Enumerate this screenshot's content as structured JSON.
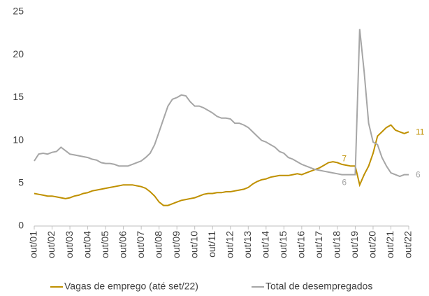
{
  "chart_data": {
    "type": "line",
    "categories": [
      "out/01",
      null,
      null,
      null,
      "out/02",
      null,
      null,
      null,
      "out/03",
      null,
      null,
      null,
      "out/04",
      null,
      null,
      null,
      "out/05",
      null,
      null,
      null,
      "out/06",
      null,
      null,
      null,
      "out/07",
      null,
      null,
      null,
      "out/08",
      null,
      null,
      null,
      "out/09",
      null,
      null,
      null,
      "out/10",
      null,
      null,
      null,
      "out/11",
      null,
      null,
      null,
      "out/12",
      null,
      null,
      null,
      "out/13",
      null,
      null,
      null,
      "out/14",
      null,
      null,
      null,
      "out/15",
      null,
      null,
      null,
      "out/16",
      null,
      null,
      null,
      "out/17",
      null,
      null,
      null,
      "out/18",
      null,
      null,
      null,
      "out/19",
      null,
      null,
      null,
      "out/20",
      null,
      null,
      null,
      "out/21",
      null,
      null,
      null,
      "out/22"
    ],
    "series": [
      {
        "name": "Vagas de emprego (até set/22)",
        "color": "#bf9000",
        "values": [
          3.8,
          3.7,
          3.6,
          3.5,
          3.5,
          3.4,
          3.3,
          3.2,
          3.3,
          3.5,
          3.6,
          3.8,
          3.9,
          4.1,
          4.2,
          4.3,
          4.4,
          4.5,
          4.6,
          4.7,
          4.8,
          4.8,
          4.8,
          4.7,
          4.6,
          4.4,
          4.0,
          3.5,
          2.8,
          2.4,
          2.4,
          2.6,
          2.8,
          3.0,
          3.1,
          3.2,
          3.3,
          3.5,
          3.7,
          3.8,
          3.8,
          3.9,
          3.9,
          4.0,
          4.0,
          4.1,
          4.2,
          4.3,
          4.5,
          4.9,
          5.2,
          5.4,
          5.5,
          5.7,
          5.8,
          5.9,
          5.9,
          5.9,
          6.0,
          6.1,
          6.0,
          6.2,
          6.4,
          6.6,
          6.8,
          7.1,
          7.4,
          7.5,
          7.4,
          7.2,
          7.1,
          7,
          7.0,
          4.8,
          6.0,
          7.0,
          8.5,
          10.5,
          11.0,
          11.5,
          11.8,
          11.2,
          11.0,
          10.8,
          11
        ],
        "value_labels": [
          null,
          null,
          null,
          null,
          null,
          null,
          null,
          null,
          null,
          null,
          null,
          null,
          null,
          null,
          null,
          null,
          null,
          null,
          null,
          null,
          null,
          null,
          null,
          null,
          null,
          null,
          null,
          null,
          null,
          null,
          null,
          null,
          null,
          null,
          null,
          null,
          null,
          null,
          null,
          null,
          null,
          null,
          null,
          null,
          null,
          null,
          null,
          null,
          null,
          null,
          null,
          null,
          null,
          null,
          null,
          null,
          null,
          null,
          null,
          null,
          null,
          null,
          null,
          null,
          null,
          null,
          null,
          null,
          null,
          null,
          null,
          "7",
          null,
          null,
          null,
          null,
          null,
          null,
          null,
          null,
          null,
          null,
          null,
          null,
          "11"
        ]
      },
      {
        "name": "Total de desempregados",
        "color": "#a6a6a6",
        "values": [
          7.6,
          8.4,
          8.5,
          8.4,
          8.6,
          8.7,
          9.2,
          8.8,
          8.4,
          8.3,
          8.2,
          8.1,
          8.0,
          7.8,
          7.7,
          7.4,
          7.3,
          7.3,
          7.2,
          7.0,
          7.0,
          7.0,
          7.2,
          7.4,
          7.6,
          8.0,
          8.5,
          9.5,
          11.0,
          12.5,
          14.0,
          14.8,
          15.0,
          15.3,
          15.2,
          14.5,
          14.0,
          14.0,
          13.8,
          13.5,
          13.2,
          12.8,
          12.6,
          12.6,
          12.5,
          12.0,
          12.0,
          11.8,
          11.5,
          11.0,
          10.5,
          10.0,
          9.8,
          9.5,
          9.2,
          8.7,
          8.5,
          8.0,
          7.8,
          7.5,
          7.2,
          7.0,
          6.8,
          6.6,
          6.5,
          6.4,
          6.3,
          6.2,
          6.1,
          6.0,
          6.0,
          6,
          6.0,
          23.0,
          18.0,
          12.0,
          9.8,
          9.5,
          8.0,
          7.0,
          6.2,
          6.0,
          5.8,
          6.0,
          6
        ],
        "value_labels": [
          null,
          null,
          null,
          null,
          null,
          null,
          null,
          null,
          null,
          null,
          null,
          null,
          null,
          null,
          null,
          null,
          null,
          null,
          null,
          null,
          null,
          null,
          null,
          null,
          null,
          null,
          null,
          null,
          null,
          null,
          null,
          null,
          null,
          null,
          null,
          null,
          null,
          null,
          null,
          null,
          null,
          null,
          null,
          null,
          null,
          null,
          null,
          null,
          null,
          null,
          null,
          null,
          null,
          null,
          null,
          null,
          null,
          null,
          null,
          null,
          null,
          null,
          null,
          null,
          null,
          null,
          null,
          null,
          null,
          null,
          null,
          "6",
          null,
          null,
          null,
          null,
          null,
          null,
          null,
          null,
          null,
          null,
          null,
          null,
          "6"
        ]
      }
    ],
    "ylim": [
      0,
      25
    ],
    "yticks": [
      0,
      5,
      10,
      15,
      20,
      25
    ],
    "grid": false,
    "legend": "bottom"
  }
}
